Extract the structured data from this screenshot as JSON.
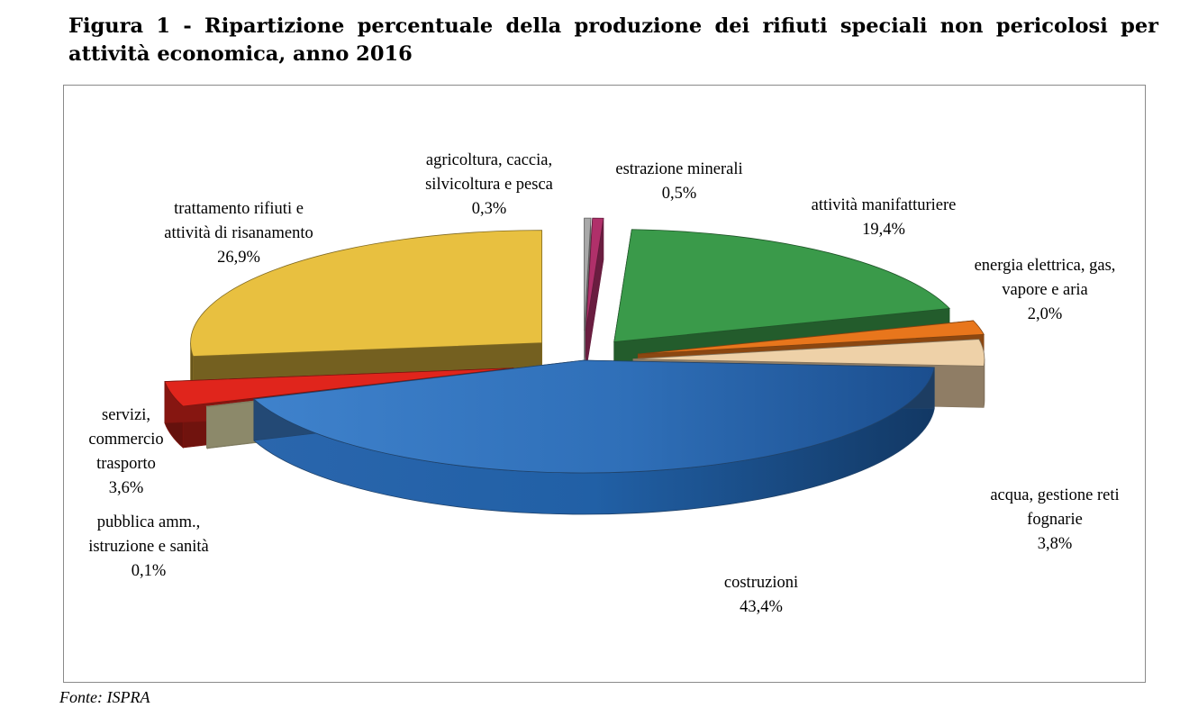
{
  "header": {
    "title": "Figura 1 - Ripartizione percentuale della produzione dei rifiuti speciali non pericolosi per attività economica, anno 2016"
  },
  "footer": {
    "source": "Fonte: ISPRA"
  },
  "chart_data": {
    "type": "pie",
    "variant": "3d-exploded",
    "values_unit": "%",
    "slices": [
      {
        "key": "agricoltura",
        "label": [
          "agricoltura, caccia,",
          "silvicoltura e pesca"
        ],
        "value_label": "0,3%",
        "value": 0.3,
        "color": "#a9a9a9"
      },
      {
        "key": "estrazione",
        "label": [
          "estrazione minerali"
        ],
        "value_label": "0,5%",
        "value": 0.5,
        "color": "#b0306a"
      },
      {
        "key": "manifatturiere",
        "label": [
          "attività manifatturiere"
        ],
        "value_label": "19,4%",
        "value": 19.4,
        "color": "#3a9a4a"
      },
      {
        "key": "energia",
        "label": [
          "energia elettrica, gas,",
          "vapore e aria"
        ],
        "value_label": "2,0%",
        "value": 2.0,
        "color": "#e8761c"
      },
      {
        "key": "acqua",
        "label": [
          "acqua, gestione reti",
          "fognarie"
        ],
        "value_label": "3,8%",
        "value": 3.8,
        "color": "#eed1a8"
      },
      {
        "key": "costruzioni",
        "label": [
          "costruzioni"
        ],
        "value_label": "43,4%",
        "value": 43.4,
        "color": "#3a79c3"
      },
      {
        "key": "pubblica",
        "label": [
          "pubblica amm.,",
          "istruzione e sanità"
        ],
        "value_label": "0,1%",
        "value": 0.1,
        "color": "#e9e4b0"
      },
      {
        "key": "servizi",
        "label": [
          "servizi,",
          "commercio",
          "trasporto"
        ],
        "value_label": "3,6%",
        "value": 3.6,
        "color": "#e0251c"
      },
      {
        "key": "trattamento",
        "label": [
          "trattamento rifiuti e",
          "attività di risanamento"
        ],
        "value_label": "26,9%",
        "value": 26.9,
        "color": "#e8c040"
      }
    ]
  }
}
